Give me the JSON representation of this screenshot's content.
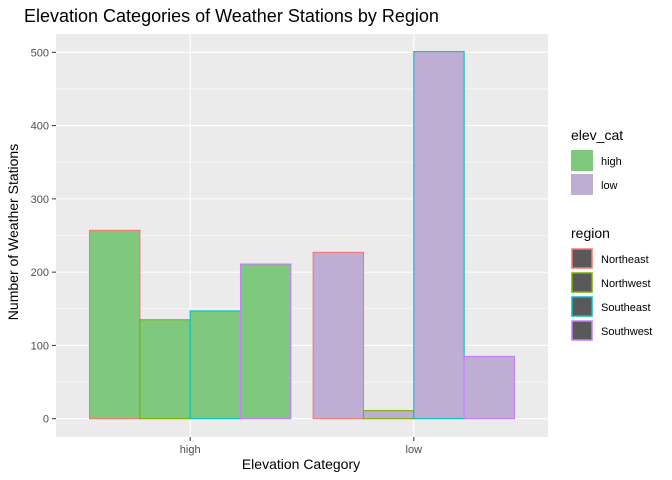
{
  "chart_data": {
    "type": "bar",
    "title": "Elevation Categories of Weather Stations by Region",
    "xlabel": "Elevation Category",
    "ylabel": "Number of Weather Stations",
    "categories": [
      "high",
      "low"
    ],
    "ylim": [
      -25,
      525
    ],
    "yticks": [
      0,
      100,
      200,
      300,
      400,
      500
    ],
    "grid": true,
    "regions": [
      "Northeast",
      "Northwest",
      "Southeast",
      "Southwest"
    ],
    "series": [
      {
        "name": "Northeast",
        "values": [
          257,
          227
        ]
      },
      {
        "name": "Northwest",
        "values": [
          135,
          11
        ]
      },
      {
        "name": "Southeast",
        "values": [
          147,
          501
        ]
      },
      {
        "name": "Southwest",
        "values": [
          211,
          85
        ]
      }
    ],
    "legend_placement": "right",
    "legend_fill": {
      "title": "elev_cat",
      "entries": [
        {
          "label": "high",
          "color": "#7fc97f"
        },
        {
          "label": "low",
          "color": "#beaed4"
        }
      ]
    },
    "legend_color": {
      "title": "region",
      "entries": [
        {
          "label": "Northeast",
          "color": "#f8766d"
        },
        {
          "label": "Northwest",
          "color": "#7cae00"
        },
        {
          "label": "Southeast",
          "color": "#00bfc4"
        },
        {
          "label": "Southwest",
          "color": "#c77cff"
        }
      ]
    },
    "colors": {
      "panel_background": "#ebebeb",
      "grid_major": "#ffffff",
      "region_key_fill": "#595959"
    }
  }
}
